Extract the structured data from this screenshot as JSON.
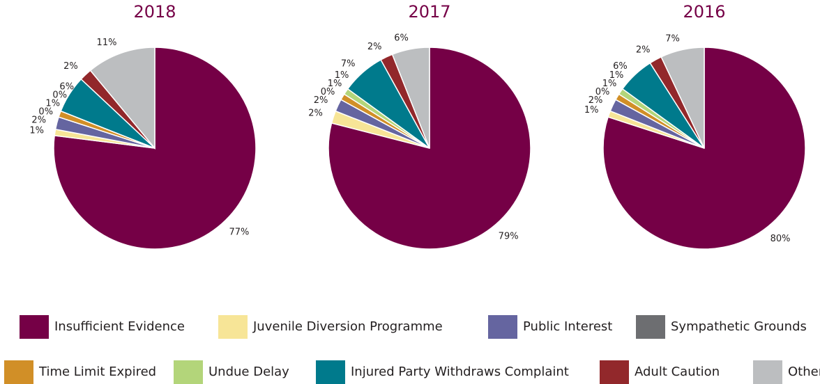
{
  "chart_data": [
    {
      "type": "pie",
      "title": "2018",
      "values": [
        77,
        1,
        2,
        0,
        1,
        0,
        6,
        2,
        11
      ],
      "value_labels": [
        "77%",
        "1%",
        "2%",
        "0%",
        "1%",
        "0%",
        "6%",
        "2%",
        "11%"
      ]
    },
    {
      "type": "pie",
      "title": "2017",
      "values": [
        79,
        2,
        2,
        0,
        1,
        1,
        7,
        2,
        6
      ],
      "value_labels": [
        "79%",
        "2%",
        "2%",
        "0%",
        "1%",
        "1%",
        "7%",
        "2%",
        "6%"
      ]
    },
    {
      "type": "pie",
      "title": "2016",
      "values": [
        80,
        1,
        2,
        0,
        1,
        1,
        6,
        2,
        7
      ],
      "value_labels": [
        "80%",
        "1%",
        "2%",
        "0%",
        "1%",
        "1%",
        "6%",
        "2%",
        "7%"
      ]
    }
  ],
  "legend": {
    "labels": [
      "Insufficient Evidence",
      "Juvenile Diversion Programme",
      "Public Interest",
      "Sympathetic Grounds",
      "Time Limit Expired",
      "Undue Delay",
      "Injured Party Withdraws Complaint",
      "Adult Caution",
      "Other"
    ],
    "colors": [
      "#750046",
      "#f7e597",
      "#6565a0",
      "#6d6e71",
      "#d18f27",
      "#b3d57a",
      "#007a8c",
      "#92282b",
      "#bcbec0"
    ]
  }
}
